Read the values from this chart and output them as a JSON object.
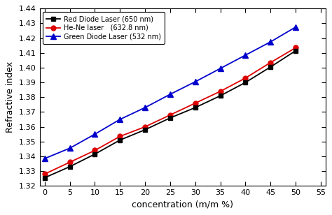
{
  "x": [
    0,
    5,
    10,
    15,
    20,
    25,
    30,
    35,
    40,
    45,
    50
  ],
  "red_diode": [
    1.3255,
    1.333,
    1.3415,
    1.351,
    1.358,
    1.366,
    1.373,
    1.381,
    1.39,
    1.4005,
    1.4115
  ],
  "hene": [
    1.328,
    1.336,
    1.344,
    1.3535,
    1.36,
    1.368,
    1.376,
    1.384,
    1.393,
    1.4035,
    1.4135
  ],
  "green_diode": [
    1.3385,
    1.3455,
    1.355,
    1.365,
    1.373,
    1.382,
    1.3905,
    1.3995,
    1.4085,
    1.4175,
    1.4275
  ],
  "red_diode_label": "Red Diode Laser (650 nm)",
  "hene_label": "He-Ne laser   (632.8 nm)",
  "green_diode_label": "Green Diode Laser (532 nm)",
  "xlabel": "concentration (m/m %)",
  "ylabel": "Refractive index",
  "xlim": [
    -1,
    56
  ],
  "ylim": [
    1.32,
    1.44
  ],
  "yticks": [
    1.32,
    1.33,
    1.34,
    1.35,
    1.36,
    1.37,
    1.38,
    1.39,
    1.4,
    1.41,
    1.42,
    1.43,
    1.44
  ],
  "xticks": [
    0,
    5,
    10,
    15,
    20,
    25,
    30,
    35,
    40,
    45,
    50,
    55
  ],
  "bg_color": "#ffffff",
  "red_color": "#dd0000",
  "black_color": "#000000",
  "blue_color": "#0000cc"
}
